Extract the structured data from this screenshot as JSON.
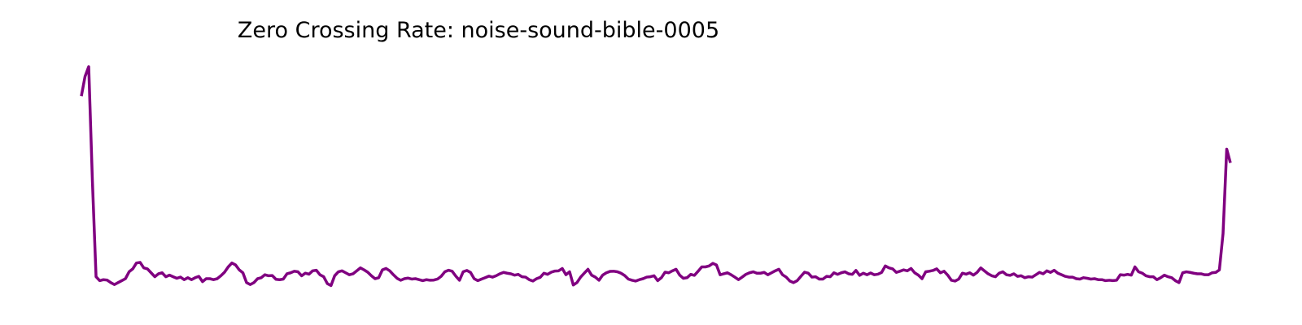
{
  "chart_data": {
    "type": "line",
    "title": "Zero Crossing Rate: noise-sound-bible-0005",
    "xlabel": "",
    "ylabel": "",
    "axes_visible": false,
    "grid": false,
    "legend": "none",
    "series": [
      {
        "color": "#800080",
        "values": [
          0.105,
          0.115,
          0.12,
          0.062,
          0.013,
          0.011,
          0.0115,
          0.0113,
          0.01,
          0.009,
          0.01,
          0.011,
          0.012,
          0.0155,
          0.017,
          0.02,
          0.0203,
          0.0175,
          0.017,
          0.015,
          0.013,
          0.0145,
          0.015,
          0.013,
          0.0138,
          0.013,
          0.0122,
          0.0128,
          0.0115,
          0.0125,
          0.0115,
          0.0125,
          0.0132,
          0.0105,
          0.012,
          0.012,
          0.0115,
          0.012,
          0.0135,
          0.0153,
          0.018,
          0.02,
          0.019,
          0.0165,
          0.015,
          0.01,
          0.009,
          0.01,
          0.012,
          0.0125,
          0.014,
          0.0135,
          0.0136,
          0.0117,
          0.0115,
          0.0118,
          0.0145,
          0.015,
          0.0158,
          0.0155,
          0.0135,
          0.0148,
          0.0143,
          0.016,
          0.0163,
          0.014,
          0.013,
          0.0095,
          0.0085,
          0.0135,
          0.0155,
          0.016,
          0.015,
          0.014,
          0.0145,
          0.016,
          0.0175,
          0.0165,
          0.0153,
          0.0135,
          0.012,
          0.0125,
          0.0165,
          0.0172,
          0.016,
          0.014,
          0.0122,
          0.0112,
          0.012,
          0.0123,
          0.0118,
          0.012,
          0.0115,
          0.011,
          0.0115,
          0.0112,
          0.0113,
          0.0118,
          0.0132,
          0.0155,
          0.0163,
          0.0158,
          0.0133,
          0.0112,
          0.0155,
          0.0162,
          0.0152,
          0.012,
          0.011,
          0.0118,
          0.0125,
          0.0133,
          0.0128,
          0.0135,
          0.0145,
          0.0152,
          0.0148,
          0.0145,
          0.0138,
          0.0142,
          0.013,
          0.0128,
          0.0115,
          0.0108,
          0.012,
          0.0127,
          0.0148,
          0.0142,
          0.0153,
          0.0159,
          0.016,
          0.0172,
          0.014,
          0.0155,
          0.0088,
          0.01,
          0.0128,
          0.0148,
          0.0168,
          0.0138,
          0.0128,
          0.0112,
          0.0138,
          0.015,
          0.0157,
          0.0158,
          0.0155,
          0.0148,
          0.0136,
          0.0118,
          0.0112,
          0.0108,
          0.0115,
          0.012,
          0.0128,
          0.013,
          0.0135,
          0.011,
          0.0125,
          0.0153,
          0.015,
          0.016,
          0.0168,
          0.0138,
          0.0122,
          0.0125,
          0.0142,
          0.0137,
          0.0158,
          0.018,
          0.018,
          0.0185,
          0.0198,
          0.019,
          0.014,
          0.0145,
          0.015,
          0.014,
          0.0128,
          0.0115,
          0.0128,
          0.0142,
          0.015,
          0.0155,
          0.0148,
          0.0148,
          0.0152,
          0.014,
          0.015,
          0.016,
          0.0168,
          0.014,
          0.0128,
          0.0108,
          0.01,
          0.011,
          0.0132,
          0.0153,
          0.0148,
          0.0128,
          0.013,
          0.0118,
          0.0118,
          0.0132,
          0.013,
          0.015,
          0.0142,
          0.015,
          0.0155,
          0.0145,
          0.0142,
          0.0162,
          0.0137,
          0.0148,
          0.014,
          0.0149,
          0.014,
          0.0143,
          0.0152,
          0.0185,
          0.0175,
          0.017,
          0.0152,
          0.0158,
          0.0165,
          0.016,
          0.0172,
          0.015,
          0.0138,
          0.012,
          0.0155,
          0.0158,
          0.0162,
          0.017,
          0.015,
          0.0158,
          0.0138,
          0.0112,
          0.0108,
          0.0118,
          0.0148,
          0.0143,
          0.015,
          0.0138,
          0.0152,
          0.0175,
          0.016,
          0.0145,
          0.0135,
          0.013,
          0.0148,
          0.0155,
          0.014,
          0.0137,
          0.0145,
          0.0132,
          0.0135,
          0.0125,
          0.013,
          0.0128,
          0.014,
          0.0152,
          0.0145,
          0.016,
          0.0152,
          0.0163,
          0.0148,
          0.014,
          0.0132,
          0.0128,
          0.0128,
          0.012,
          0.0118,
          0.0125,
          0.0122,
          0.0118,
          0.012,
          0.0115,
          0.0115,
          0.011,
          0.0112,
          0.011,
          0.0112,
          0.014,
          0.0138,
          0.0142,
          0.0138,
          0.018,
          0.0155,
          0.0148,
          0.0135,
          0.013,
          0.013,
          0.0115,
          0.0125,
          0.0138,
          0.013,
          0.0125,
          0.011,
          0.01,
          0.015,
          0.0155,
          0.0152,
          0.0148,
          0.0145,
          0.0145,
          0.014,
          0.014,
          0.015,
          0.0152,
          0.0165,
          0.035,
          0.078,
          0.071
        ]
      }
    ]
  }
}
